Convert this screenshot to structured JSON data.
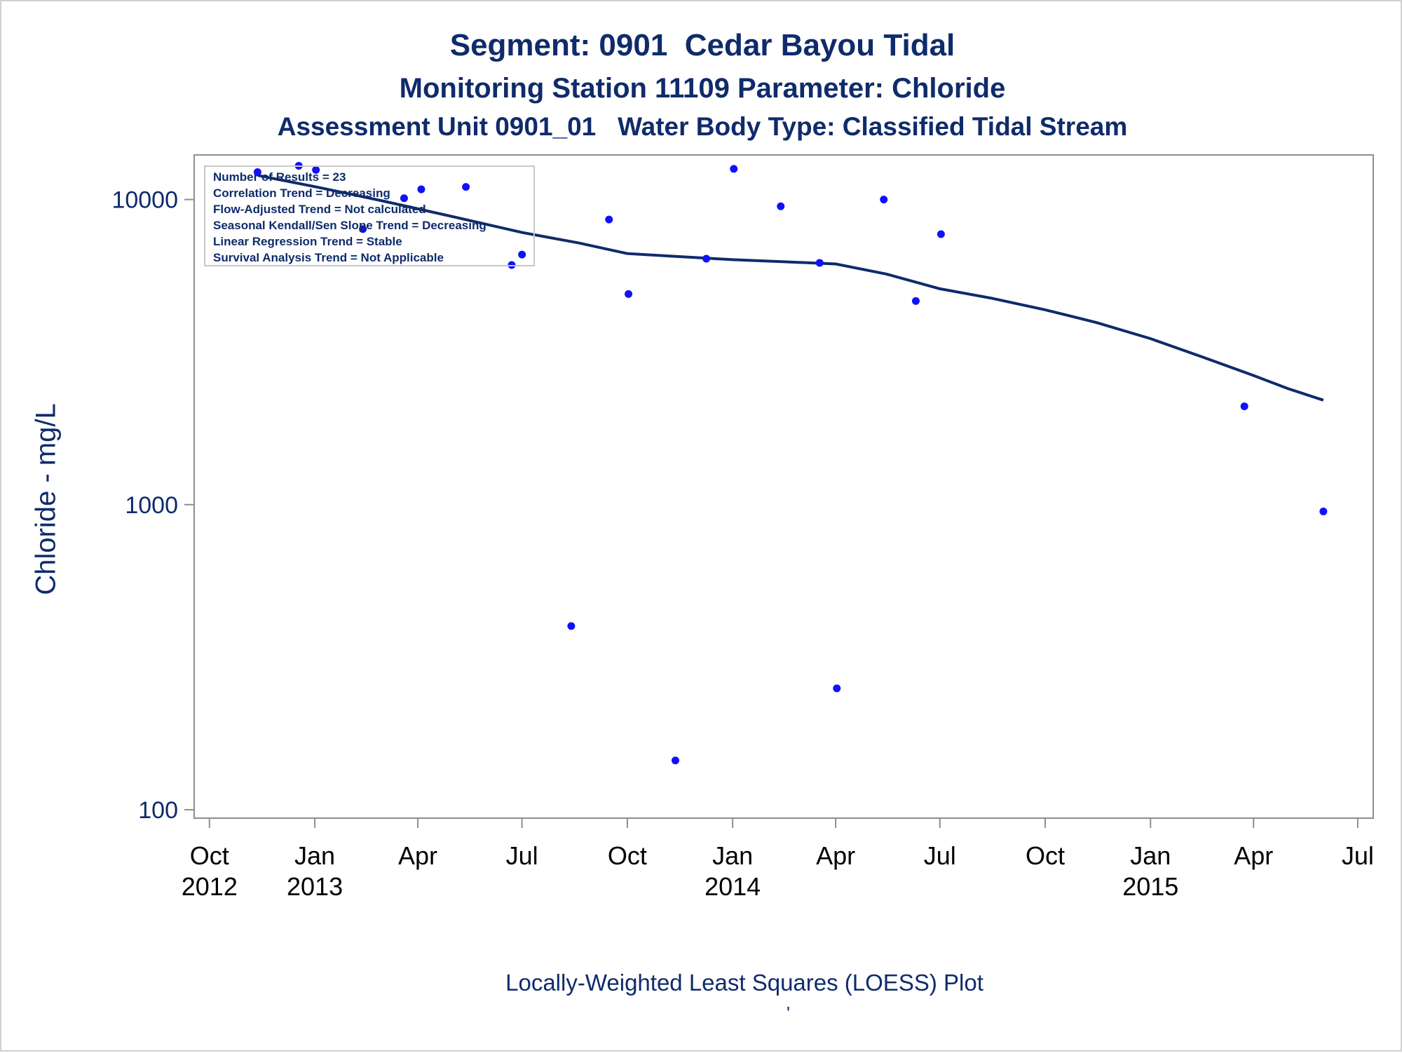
{
  "titles": {
    "line1": "Segment: 0901  Cedar Bayou Tidal",
    "line2": "Monitoring Station 11109 Parameter: Chloride",
    "line3": "Assessment Unit 0901_01   Water Body Type: Classified Tidal Stream"
  },
  "footnote": "Locally-Weighted Least Squares (LOESS) Plot",
  "footnote_mark": "'",
  "stats_box": [
    "Number of Results = 23",
    "Correlation Trend = Decreasing",
    "Flow-Adjusted Trend = Not calculated",
    "Seasonal Kendall/Sen Slope Trend = Decreasing",
    "Linear Regression Trend = Stable",
    "Survival Analysis Trend = Not Applicable"
  ],
  "colors": {
    "title": "#0f2b6b",
    "points": "#1010ff",
    "loess": "#0f2b6b",
    "axis": "#8a8f96"
  },
  "chart_data": {
    "type": "scatter",
    "ylabel": "Chloride - mg/L",
    "yscale": "log",
    "ylim": [
      100,
      14000
    ],
    "yticks": [
      {
        "value": 100,
        "label": "100"
      },
      {
        "value": 1000,
        "label": "1000"
      },
      {
        "value": 10000,
        "label": "10000"
      }
    ],
    "xlim": [
      "2012-09-25",
      "2015-07-06"
    ],
    "xticks": [
      {
        "date": "2012-10-01",
        "label": "Oct",
        "year": "2012"
      },
      {
        "date": "2013-01-01",
        "label": "Jan",
        "year": "2013"
      },
      {
        "date": "2013-04-01",
        "label": "Apr",
        "year": ""
      },
      {
        "date": "2013-07-01",
        "label": "Jul",
        "year": ""
      },
      {
        "date": "2013-10-01",
        "label": "Oct",
        "year": ""
      },
      {
        "date": "2014-01-01",
        "label": "Jan",
        "year": "2014"
      },
      {
        "date": "2014-04-01",
        "label": "Apr",
        "year": ""
      },
      {
        "date": "2014-07-01",
        "label": "Jul",
        "year": ""
      },
      {
        "date": "2014-10-01",
        "label": "Oct",
        "year": ""
      },
      {
        "date": "2015-01-01",
        "label": "Jan",
        "year": "2015"
      },
      {
        "date": "2015-04-01",
        "label": "Apr",
        "year": ""
      },
      {
        "date": "2015-07-01",
        "label": "Jul",
        "year": ""
      }
    ],
    "points": [
      {
        "x": "2012-11-12",
        "y": 12300
      },
      {
        "x": "2012-12-18",
        "y": 12900
      },
      {
        "x": "2013-01-02",
        "y": 12500
      },
      {
        "x": "2013-02-12",
        "y": 8000
      },
      {
        "x": "2013-03-20",
        "y": 10100
      },
      {
        "x": "2013-04-04",
        "y": 10800
      },
      {
        "x": "2013-05-13",
        "y": 11000
      },
      {
        "x": "2013-06-22",
        "y": 6100
      },
      {
        "x": "2013-07-01",
        "y": 6600
      },
      {
        "x": "2013-08-13",
        "y": 400
      },
      {
        "x": "2013-09-15",
        "y": 8600
      },
      {
        "x": "2013-10-02",
        "y": 4900
      },
      {
        "x": "2013-11-12",
        "y": 145
      },
      {
        "x": "2013-12-09",
        "y": 6400
      },
      {
        "x": "2014-01-02",
        "y": 12600
      },
      {
        "x": "2014-02-12",
        "y": 9500
      },
      {
        "x": "2014-03-18",
        "y": 6200
      },
      {
        "x": "2014-04-02",
        "y": 250
      },
      {
        "x": "2014-05-13",
        "y": 10000
      },
      {
        "x": "2014-06-10",
        "y": 4650
      },
      {
        "x": "2014-07-02",
        "y": 7700
      },
      {
        "x": "2015-03-24",
        "y": 2100
      },
      {
        "x": "2015-06-01",
        "y": 950
      }
    ],
    "loess": [
      {
        "x": "2012-11-12",
        "y": 12000
      },
      {
        "x": "2013-01-02",
        "y": 11000
      },
      {
        "x": "2013-03-01",
        "y": 9900
      },
      {
        "x": "2013-05-01",
        "y": 8800
      },
      {
        "x": "2013-07-01",
        "y": 7800
      },
      {
        "x": "2013-08-20",
        "y": 7200
      },
      {
        "x": "2013-10-01",
        "y": 6650
      },
      {
        "x": "2013-11-15",
        "y": 6500
      },
      {
        "x": "2014-01-01",
        "y": 6350
      },
      {
        "x": "2014-02-15",
        "y": 6250
      },
      {
        "x": "2014-04-01",
        "y": 6150
      },
      {
        "x": "2014-05-15",
        "y": 5700
      },
      {
        "x": "2014-07-01",
        "y": 5100
      },
      {
        "x": "2014-08-15",
        "y": 4750
      },
      {
        "x": "2014-10-01",
        "y": 4350
      },
      {
        "x": "2014-11-15",
        "y": 3950
      },
      {
        "x": "2015-01-01",
        "y": 3500
      },
      {
        "x": "2015-02-15",
        "y": 3050
      },
      {
        "x": "2015-04-01",
        "y": 2650
      },
      {
        "x": "2015-05-01",
        "y": 2400
      },
      {
        "x": "2015-06-01",
        "y": 2200
      }
    ]
  }
}
